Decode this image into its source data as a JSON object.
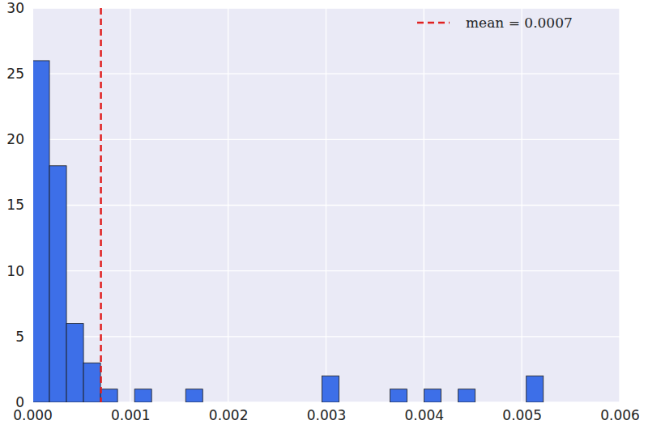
{
  "chart_data": {
    "type": "histogram",
    "bins": [
      0,
      0.000174,
      0.000348,
      0.000522,
      0.000696,
      0.00087,
      0.001044,
      0.001218,
      0.001392,
      0.001566,
      0.00174,
      0.001914,
      0.002088,
      0.002262,
      0.002436,
      0.00261,
      0.002784,
      0.002958,
      0.003132,
      0.003306,
      0.00348,
      0.003654,
      0.003828,
      0.004002,
      0.004176,
      0.00435,
      0.004524,
      0.004698,
      0.004872,
      0.005046,
      0.00522
    ],
    "values": [
      26,
      18,
      6,
      3,
      1,
      0,
      1,
      0,
      0,
      1,
      0,
      0,
      0,
      0,
      0,
      0,
      0,
      2,
      0,
      0,
      0,
      1,
      0,
      1,
      0,
      1,
      0,
      0,
      0,
      2
    ],
    "color": "#3d6fe8",
    "xlim": [
      0,
      0.006
    ],
    "xticks": [
      {
        "value": 0,
        "label": "0.000"
      },
      {
        "value": 0.001,
        "label": "0.001"
      },
      {
        "value": 0.002,
        "label": "0.002"
      },
      {
        "value": 0.003,
        "label": "0.003"
      },
      {
        "value": 0.004,
        "label": "0.004"
      },
      {
        "value": 0.005,
        "label": "0.005"
      },
      {
        "value": 0.006,
        "label": "0.006"
      }
    ],
    "ylim": [
      0,
      30
    ],
    "yticks": [
      0,
      5,
      10,
      15,
      20,
      25,
      30
    ],
    "grid": true,
    "legend": "upper right",
    "reference_lines": [
      {
        "value": 0.0007,
        "label": "mean = 0.0007",
        "color": "#e02020",
        "line_style": "dashed"
      }
    ]
  }
}
